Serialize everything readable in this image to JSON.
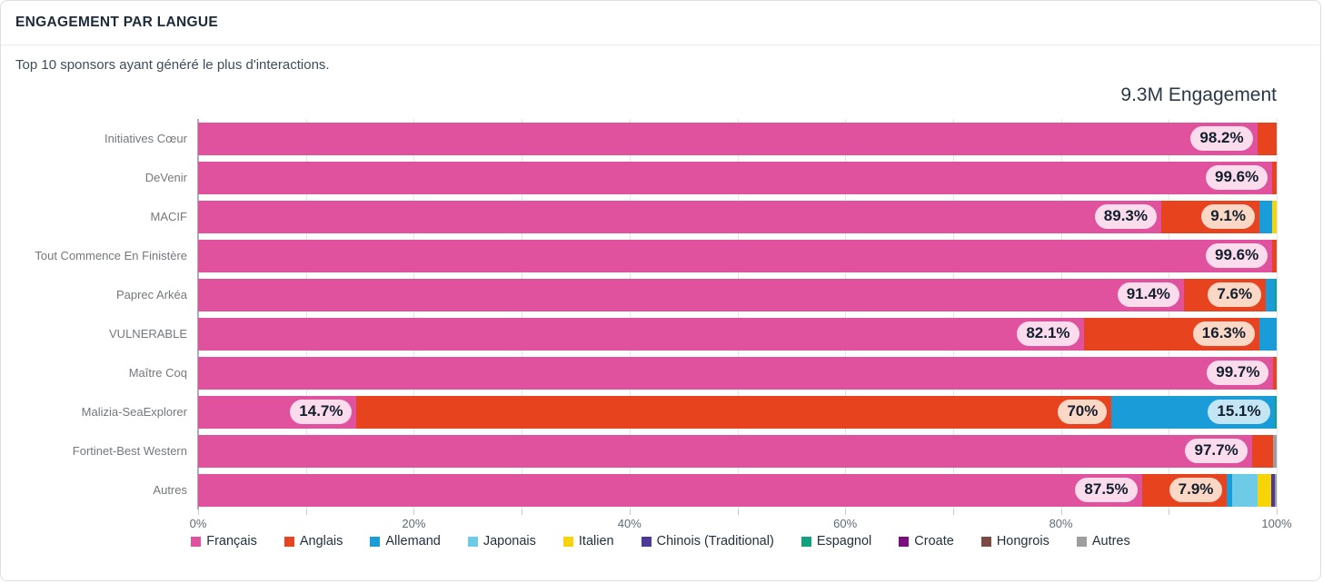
{
  "header": {
    "title": "ENGAGEMENT PAR LANGUE"
  },
  "subtitle": "Top 10 sponsors ayant généré le plus d'interactions.",
  "total_label": "9.3M Engagement",
  "chart_data": {
    "type": "bar",
    "orientation": "horizontal",
    "stacked": true,
    "unit": "%",
    "xlim": [
      0,
      100
    ],
    "x_ticks": [
      "0%",
      "20%",
      "40%",
      "60%",
      "80%",
      "100%"
    ],
    "gridline_step_percent": 10,
    "legend_position": "bottom",
    "legend": [
      {
        "name": "Français",
        "color": "#e0519e"
      },
      {
        "name": "Anglais",
        "color": "#e8431f"
      },
      {
        "name": "Allemand",
        "color": "#1a9cd8"
      },
      {
        "name": "Japonais",
        "color": "#6ecbe8"
      },
      {
        "name": "Italien",
        "color": "#f7d408"
      },
      {
        "name": "Chinois (Traditional)",
        "color": "#4d3a96"
      },
      {
        "name": "Espagnol",
        "color": "#12a07f"
      },
      {
        "name": "Croate",
        "color": "#7b0d80"
      },
      {
        "name": "Hongrois",
        "color": "#7b4a42"
      },
      {
        "name": "Autres",
        "color": "#9e9e9e"
      }
    ],
    "pill_styles": {
      "Français": "#fadcec",
      "Anglais": "#fbd8c6",
      "Allemand": "#c4e6f4"
    },
    "rows": [
      {
        "category": "Initiatives Cœur",
        "segments": [
          {
            "language": "Français",
            "value": 98.2,
            "label": "98.2%"
          },
          {
            "language": "Anglais",
            "value": 1.8
          }
        ]
      },
      {
        "category": "DeVenir",
        "segments": [
          {
            "language": "Français",
            "value": 99.6,
            "label": "99.6%"
          },
          {
            "language": "Anglais",
            "value": 0.4
          }
        ]
      },
      {
        "category": "MACIF",
        "segments": [
          {
            "language": "Français",
            "value": 89.3,
            "label": "89.3%"
          },
          {
            "language": "Anglais",
            "value": 9.1,
            "label": "9.1%"
          },
          {
            "language": "Allemand",
            "value": 1.2
          },
          {
            "language": "Italien",
            "value": 0.4
          }
        ]
      },
      {
        "category": "Tout Commence En Finistère",
        "segments": [
          {
            "language": "Français",
            "value": 99.6,
            "label": "99.6%"
          },
          {
            "language": "Anglais",
            "value": 0.4
          }
        ]
      },
      {
        "category": "Paprec Arkéa",
        "segments": [
          {
            "language": "Français",
            "value": 91.4,
            "label": "91.4%"
          },
          {
            "language": "Anglais",
            "value": 7.6,
            "label": "7.6%"
          },
          {
            "language": "Allemand",
            "value": 0.8
          },
          {
            "language": "Espagnol",
            "value": 0.2
          }
        ]
      },
      {
        "category": "VULNERABLE",
        "segments": [
          {
            "language": "Français",
            "value": 82.1,
            "label": "82.1%"
          },
          {
            "language": "Anglais",
            "value": 16.3,
            "label": "16.3%"
          },
          {
            "language": "Allemand",
            "value": 1.6
          }
        ]
      },
      {
        "category": "Maître Coq",
        "segments": [
          {
            "language": "Français",
            "value": 99.7,
            "label": "99.7%"
          },
          {
            "language": "Anglais",
            "value": 0.3
          }
        ]
      },
      {
        "category": "Malizia-SeaExplorer",
        "segments": [
          {
            "language": "Français",
            "value": 14.7,
            "label": "14.7%"
          },
          {
            "language": "Anglais",
            "value": 70,
            "label": "70%"
          },
          {
            "language": "Allemand",
            "value": 15.1,
            "label": "15.1%"
          },
          {
            "language": "Espagnol",
            "value": 0.2
          }
        ]
      },
      {
        "category": "Fortinet-Best Western",
        "segments": [
          {
            "language": "Français",
            "value": 97.7,
            "label": "97.7%"
          },
          {
            "language": "Anglais",
            "value": 2.0
          },
          {
            "language": "Autres",
            "value": 0.3
          }
        ]
      },
      {
        "category": "Autres",
        "segments": [
          {
            "language": "Français",
            "value": 87.5,
            "label": "87.5%"
          },
          {
            "language": "Anglais",
            "value": 7.9,
            "label": "7.9%"
          },
          {
            "language": "Allemand",
            "value": 0.5
          },
          {
            "language": "Japonais",
            "value": 2.3
          },
          {
            "language": "Italien",
            "value": 1.3
          },
          {
            "language": "Chinois (Traditional)",
            "value": 0.3
          },
          {
            "language": "Autres",
            "value": 0.2
          }
        ]
      }
    ]
  }
}
